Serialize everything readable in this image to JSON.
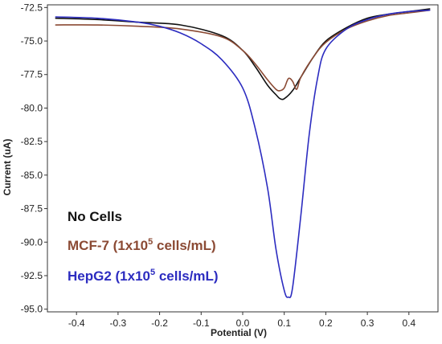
{
  "chart_data": {
    "type": "line",
    "title": "",
    "xlabel": "Potential (V)",
    "ylabel": "Current (uA)",
    "xlim": [
      -0.47,
      0.47
    ],
    "ylim": [
      -95.2,
      -72.3
    ],
    "x_ticks": [
      "-0.4",
      "-0.3",
      "-0.2",
      "-0.1",
      "0.0",
      "0.1",
      "0.2",
      "0.3",
      "0.4"
    ],
    "y_ticks": [
      "-72.5",
      "-75.0",
      "-77.5",
      "-80.0",
      "-82.5",
      "-85.0",
      "-87.5",
      "-90.0",
      "-92.5",
      "-95.0"
    ],
    "grid": false,
    "legend_position": "bottom-left",
    "series": [
      {
        "name": "No Cells",
        "color": "#111111",
        "x": [
          -0.45,
          -0.35,
          -0.25,
          -0.15,
          -0.05,
          0.0,
          0.03,
          0.06,
          0.08,
          0.09,
          0.1,
          0.12,
          0.14,
          0.17,
          0.2,
          0.25,
          0.3,
          0.35,
          0.4,
          0.45
        ],
        "y": [
          -73.3,
          -73.4,
          -73.6,
          -73.8,
          -74.6,
          -75.7,
          -76.9,
          -78.3,
          -79.0,
          -79.3,
          -79.3,
          -78.7,
          -77.7,
          -76.2,
          -75.0,
          -74.0,
          -73.3,
          -73.0,
          -72.8,
          -72.6
        ]
      },
      {
        "name": "MCF-7",
        "name_suffix": "cells/mL)",
        "color": "#8B4A34",
        "x": [
          -0.45,
          -0.35,
          -0.25,
          -0.15,
          -0.05,
          0.0,
          0.03,
          0.06,
          0.08,
          0.09,
          0.1,
          0.11,
          0.12,
          0.13,
          0.14,
          0.17,
          0.2,
          0.25,
          0.3,
          0.35,
          0.4,
          0.45
        ],
        "y": [
          -73.8,
          -73.8,
          -73.9,
          -74.1,
          -74.7,
          -75.7,
          -76.7,
          -77.9,
          -78.6,
          -78.7,
          -78.5,
          -77.8,
          -78.0,
          -78.6,
          -77.7,
          -76.2,
          -75.1,
          -74.1,
          -73.5,
          -73.1,
          -72.9,
          -72.7
        ]
      },
      {
        "name": "HepG2",
        "name_suffix": "cells/mL)",
        "color": "#2C2CC0",
        "x": [
          -0.45,
          -0.35,
          -0.25,
          -0.2,
          -0.15,
          -0.1,
          -0.05,
          0.0,
          0.03,
          0.06,
          0.08,
          0.1,
          0.11,
          0.12,
          0.14,
          0.16,
          0.18,
          0.2,
          0.25,
          0.3,
          0.35,
          0.4,
          0.45
        ],
        "y": [
          -73.2,
          -73.3,
          -73.6,
          -73.9,
          -74.4,
          -75.2,
          -76.4,
          -78.5,
          -81.5,
          -86.0,
          -90.5,
          -93.6,
          -94.1,
          -93.4,
          -88.0,
          -82.0,
          -77.8,
          -75.6,
          -74.1,
          -73.4,
          -73.0,
          -72.8,
          -72.7
        ]
      }
    ],
    "legend_entries": [
      {
        "prefix": "No Cells",
        "sup": "",
        "suffix": ""
      },
      {
        "prefix": "MCF-7 (1x10",
        "sup": "5",
        "suffix": " cells/mL)"
      },
      {
        "prefix": "HepG2 (1x10",
        "sup": "5",
        "suffix": " cells/mL)"
      }
    ]
  }
}
